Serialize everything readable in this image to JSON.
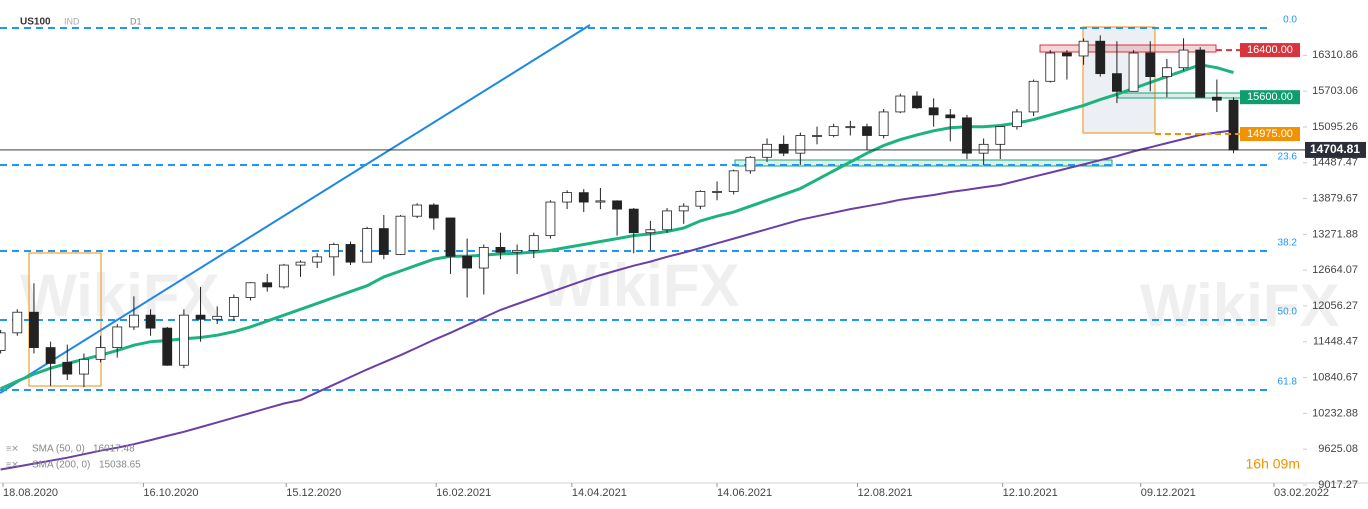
{
  "chart_data": {
    "type": "candlestick",
    "title": "US100",
    "subtitle": "IND",
    "timeframe": "D1",
    "watermark": "WikiFX",
    "countdown": "16h 09m",
    "xlim": [
      "18.08.2020",
      "03.02.2022"
    ],
    "xticks": [
      "18.08.2020",
      "16.10.2020",
      "15.12.2020",
      "16.02.2021",
      "14.04.2021",
      "14.06.2021",
      "12.08.2021",
      "12.10.2021",
      "09.12.2021",
      "03.02.2022"
    ],
    "ylim": [
      9000,
      17250
    ],
    "yticks": [
      16310.86,
      15703.06,
      15095.26,
      14487.47,
      13879.67,
      13271.88,
      12664.07,
      12056.27,
      11448.47,
      10840.67,
      10232.88,
      9625.08,
      9017.27
    ],
    "up_color": "#ffffff",
    "down_color": "#222222",
    "candles": [
      {
        "date": "17.08.2020",
        "open": 11300,
        "high": 11650,
        "low": 11250,
        "close": 11600
      },
      {
        "date": "24.08.2020",
        "open": 11600,
        "high": 12000,
        "low": 11550,
        "close": 11950
      },
      {
        "date": "31.08.2020",
        "open": 11950,
        "high": 12440,
        "low": 11250,
        "close": 11350
      },
      {
        "date": "07.09.2020",
        "open": 11350,
        "high": 11450,
        "low": 10700,
        "close": 11080
      },
      {
        "date": "14.09.2020",
        "open": 11100,
        "high": 11400,
        "low": 10800,
        "close": 10900
      },
      {
        "date": "21.09.2020",
        "open": 10900,
        "high": 11250,
        "low": 10680,
        "close": 11150
      },
      {
        "date": "28.09.2020",
        "open": 11150,
        "high": 11550,
        "low": 11100,
        "close": 11350
      },
      {
        "date": "05.10.2020",
        "open": 11350,
        "high": 11750,
        "low": 11180,
        "close": 11700
      },
      {
        "date": "12.10.2020",
        "open": 11700,
        "high": 12220,
        "low": 11650,
        "close": 11900
      },
      {
        "date": "19.10.2020",
        "open": 11900,
        "high": 12000,
        "low": 11550,
        "close": 11680
      },
      {
        "date": "26.10.2020",
        "open": 11680,
        "high": 11700,
        "low": 11040,
        "close": 11050
      },
      {
        "date": "02.11.2020",
        "open": 11050,
        "high": 12000,
        "low": 11000,
        "close": 11900
      },
      {
        "date": "09.11.2020",
        "open": 11900,
        "high": 12380,
        "low": 11450,
        "close": 11830
      },
      {
        "date": "16.11.2020",
        "open": 11830,
        "high": 12050,
        "low": 11750,
        "close": 11880
      },
      {
        "date": "23.11.2020",
        "open": 11880,
        "high": 12250,
        "low": 11800,
        "close": 12200
      },
      {
        "date": "30.11.2020",
        "open": 12200,
        "high": 12460,
        "low": 12150,
        "close": 12450
      },
      {
        "date": "07.12.2020",
        "open": 12450,
        "high": 12600,
        "low": 12300,
        "close": 12380
      },
      {
        "date": "14.12.2020",
        "open": 12380,
        "high": 12770,
        "low": 12350,
        "close": 12750
      },
      {
        "date": "21.12.2020",
        "open": 12750,
        "high": 12830,
        "low": 12550,
        "close": 12800
      },
      {
        "date": "28.12.2020",
        "open": 12800,
        "high": 12950,
        "low": 12700,
        "close": 12890
      },
      {
        "date": "04.01.2021",
        "open": 12890,
        "high": 13130,
        "low": 12570,
        "close": 13100
      },
      {
        "date": "11.01.2021",
        "open": 13100,
        "high": 13150,
        "low": 12750,
        "close": 12800
      },
      {
        "date": "18.01.2021",
        "open": 12800,
        "high": 13400,
        "low": 12800,
        "close": 13370
      },
      {
        "date": "25.01.2021",
        "open": 13370,
        "high": 13600,
        "low": 12850,
        "close": 12930
      },
      {
        "date": "01.02.2021",
        "open": 12930,
        "high": 13600,
        "low": 12920,
        "close": 13580
      },
      {
        "date": "08.02.2021",
        "open": 13580,
        "high": 13800,
        "low": 13550,
        "close": 13770
      },
      {
        "date": "15.02.2021",
        "open": 13770,
        "high": 13800,
        "low": 13350,
        "close": 13550
      },
      {
        "date": "22.02.2021",
        "open": 13550,
        "high": 13550,
        "low": 12600,
        "close": 12900
      },
      {
        "date": "01.03.2021",
        "open": 12900,
        "high": 13200,
        "low": 12200,
        "close": 12700
      },
      {
        "date": "08.03.2021",
        "open": 12700,
        "high": 13100,
        "low": 12250,
        "close": 13050
      },
      {
        "date": "15.03.2021",
        "open": 13050,
        "high": 13300,
        "low": 12850,
        "close": 12970
      },
      {
        "date": "22.03.2021",
        "open": 12970,
        "high": 13100,
        "low": 12600,
        "close": 13000
      },
      {
        "date": "29.03.2021",
        "open": 13000,
        "high": 13300,
        "low": 12870,
        "close": 13250
      },
      {
        "date": "05.04.2021",
        "open": 13250,
        "high": 13850,
        "low": 13200,
        "close": 13820
      },
      {
        "date": "12.04.2021",
        "open": 13820,
        "high": 14020,
        "low": 13700,
        "close": 13980
      },
      {
        "date": "19.04.2021",
        "open": 13980,
        "high": 14040,
        "low": 13650,
        "close": 13820
      },
      {
        "date": "26.04.2021",
        "open": 13820,
        "high": 14060,
        "low": 13700,
        "close": 13840
      },
      {
        "date": "03.05.2021",
        "open": 13840,
        "high": 13850,
        "low": 13250,
        "close": 13700
      },
      {
        "date": "10.05.2021",
        "open": 13700,
        "high": 13720,
        "low": 12950,
        "close": 13300
      },
      {
        "date": "17.05.2021",
        "open": 13300,
        "high": 13500,
        "low": 13000,
        "close": 13350
      },
      {
        "date": "24.05.2021",
        "open": 13350,
        "high": 13720,
        "low": 13300,
        "close": 13670
      },
      {
        "date": "31.05.2021",
        "open": 13670,
        "high": 13800,
        "low": 13450,
        "close": 13750
      },
      {
        "date": "07.06.2021",
        "open": 13750,
        "high": 14020,
        "low": 13700,
        "close": 14000
      },
      {
        "date": "14.06.2021",
        "open": 14000,
        "high": 14170,
        "low": 13850,
        "close": 14000
      },
      {
        "date": "21.06.2021",
        "open": 14000,
        "high": 14370,
        "low": 13950,
        "close": 14350
      },
      {
        "date": "28.06.2021",
        "open": 14350,
        "high": 14600,
        "low": 14300,
        "close": 14580
      },
      {
        "date": "05.07.2021",
        "open": 14580,
        "high": 14900,
        "low": 14500,
        "close": 14800
      },
      {
        "date": "12.07.2021",
        "open": 14800,
        "high": 14950,
        "low": 14600,
        "close": 14650
      },
      {
        "date": "19.07.2021",
        "open": 14650,
        "high": 15000,
        "low": 14450,
        "close": 14950
      },
      {
        "date": "26.07.2021",
        "open": 14950,
        "high": 15100,
        "low": 14800,
        "close": 14950
      },
      {
        "date": "02.08.2021",
        "open": 14950,
        "high": 15150,
        "low": 14920,
        "close": 15100
      },
      {
        "date": "09.08.2021",
        "open": 15100,
        "high": 15200,
        "low": 14950,
        "close": 15100
      },
      {
        "date": "16.08.2021",
        "open": 15100,
        "high": 15150,
        "low": 14700,
        "close": 14950
      },
      {
        "date": "23.08.2021",
        "open": 14950,
        "high": 15400,
        "low": 14900,
        "close": 15350
      },
      {
        "date": "30.08.2021",
        "open": 15350,
        "high": 15660,
        "low": 15330,
        "close": 15620
      },
      {
        "date": "06.09.2021",
        "open": 15620,
        "high": 15700,
        "low": 15400,
        "close": 15420
      },
      {
        "date": "13.09.2021",
        "open": 15420,
        "high": 15580,
        "low": 15100,
        "close": 15300
      },
      {
        "date": "20.09.2021",
        "open": 15300,
        "high": 15400,
        "low": 14850,
        "close": 15250
      },
      {
        "date": "27.09.2021",
        "open": 15250,
        "high": 15300,
        "low": 14550,
        "close": 14650
      },
      {
        "date": "04.10.2021",
        "open": 14650,
        "high": 14900,
        "low": 14450,
        "close": 14800
      },
      {
        "date": "11.10.2021",
        "open": 14800,
        "high": 15100,
        "low": 14550,
        "close": 15100
      },
      {
        "date": "18.10.2021",
        "open": 15100,
        "high": 15400,
        "low": 15050,
        "close": 15350
      },
      {
        "date": "25.10.2021",
        "open": 15350,
        "high": 15900,
        "low": 15280,
        "close": 15870
      },
      {
        "date": "01.11.2021",
        "open": 15870,
        "high": 16400,
        "low": 15850,
        "close": 16350
      },
      {
        "date": "08.11.2021",
        "open": 16350,
        "high": 16400,
        "low": 15900,
        "close": 16300
      },
      {
        "date": "15.11.2021",
        "open": 16300,
        "high": 16600,
        "low": 16150,
        "close": 16550
      },
      {
        "date": "22.11.2021",
        "open": 16550,
        "high": 16650,
        "low": 15950,
        "close": 16000
      },
      {
        "date": "29.11.2021",
        "open": 16000,
        "high": 16550,
        "low": 15500,
        "close": 15700
      },
      {
        "date": "06.12.2021",
        "open": 15700,
        "high": 16400,
        "low": 15700,
        "close": 16350
      },
      {
        "date": "13.12.2021",
        "open": 16350,
        "high": 16550,
        "low": 15700,
        "close": 15950
      },
      {
        "date": "20.12.2021",
        "open": 15950,
        "high": 16250,
        "low": 15600,
        "close": 16100
      },
      {
        "date": "27.12.2021",
        "open": 16100,
        "high": 16600,
        "low": 16050,
        "close": 16400
      },
      {
        "date": "03.01.2022",
        "open": 16400,
        "high": 16450,
        "low": 15600,
        "close": 15600
      },
      {
        "date": "10.01.2022",
        "open": 15600,
        "high": 15900,
        "low": 15350,
        "close": 15550
      },
      {
        "date": "17.01.2022",
        "open": 15550,
        "high": 15600,
        "low": 14650,
        "close": 14705
      }
    ],
    "series": [
      {
        "name": "SMA (50, 0)",
        "legend_value": 16017.48,
        "color": "#1db37e",
        "values": [
          10650,
          10780,
          10900,
          11000,
          11080,
          11150,
          11220,
          11300,
          11390,
          11450,
          11470,
          11500,
          11520,
          11560,
          11620,
          11700,
          11800,
          11900,
          12000,
          12100,
          12200,
          12300,
          12400,
          12550,
          12650,
          12750,
          12850,
          12900,
          12900,
          12920,
          12940,
          12950,
          12970,
          13000,
          13050,
          13100,
          13150,
          13200,
          13250,
          13280,
          13320,
          13380,
          13500,
          13580,
          13650,
          13750,
          13850,
          13950,
          14050,
          14200,
          14350,
          14500,
          14650,
          14780,
          14880,
          14960,
          15030,
          15080,
          15100,
          15100,
          15120,
          15160,
          15220,
          15300,
          15380,
          15460,
          15560,
          15650,
          15750,
          15850,
          15950,
          16050,
          16150,
          16100,
          16017.48
        ]
      },
      {
        "name": "SMA (200, 0)",
        "legend_value": 15038.65,
        "color": "#6a3fa8",
        "values": [
          9280,
          9330,
          9380,
          9430,
          9480,
          9540,
          9600,
          9650,
          9710,
          9780,
          9850,
          9920,
          10000,
          10080,
          10160,
          10240,
          10320,
          10400,
          10460,
          10590,
          10720,
          10850,
          10980,
          11100,
          11220,
          11350,
          11480,
          11600,
          11730,
          11860,
          11990,
          12090,
          12190,
          12290,
          12390,
          12490,
          12580,
          12660,
          12740,
          12810,
          12890,
          12960,
          13040,
          13120,
          13200,
          13280,
          13360,
          13440,
          13520,
          13580,
          13640,
          13700,
          13750,
          13800,
          13860,
          13900,
          13940,
          13990,
          14030,
          14070,
          14110,
          14180,
          14250,
          14320,
          14390,
          14460,
          14530,
          14600,
          14680,
          14750,
          14820,
          14890,
          14960,
          15000,
          15038.65
        ]
      }
    ],
    "fib_levels": [
      {
        "label": "0.0",
        "value": 16775
      },
      {
        "label": "23.6",
        "value": 14449
      },
      {
        "label": "38.2",
        "value": 12989
      },
      {
        "label": "50.0",
        "value": 11818
      },
      {
        "label": "61.8",
        "value": 10630
      }
    ],
    "fib_color": "#2196f3",
    "levels": [
      {
        "value": 16400,
        "label": "16400.00",
        "color": "#d9343b"
      },
      {
        "value": 15600,
        "label": "15600.00",
        "color": "#0f9d6b"
      },
      {
        "value": 14975,
        "label": "14975.00",
        "color": "#f39200"
      }
    ],
    "last_price": 14704.81
  }
}
